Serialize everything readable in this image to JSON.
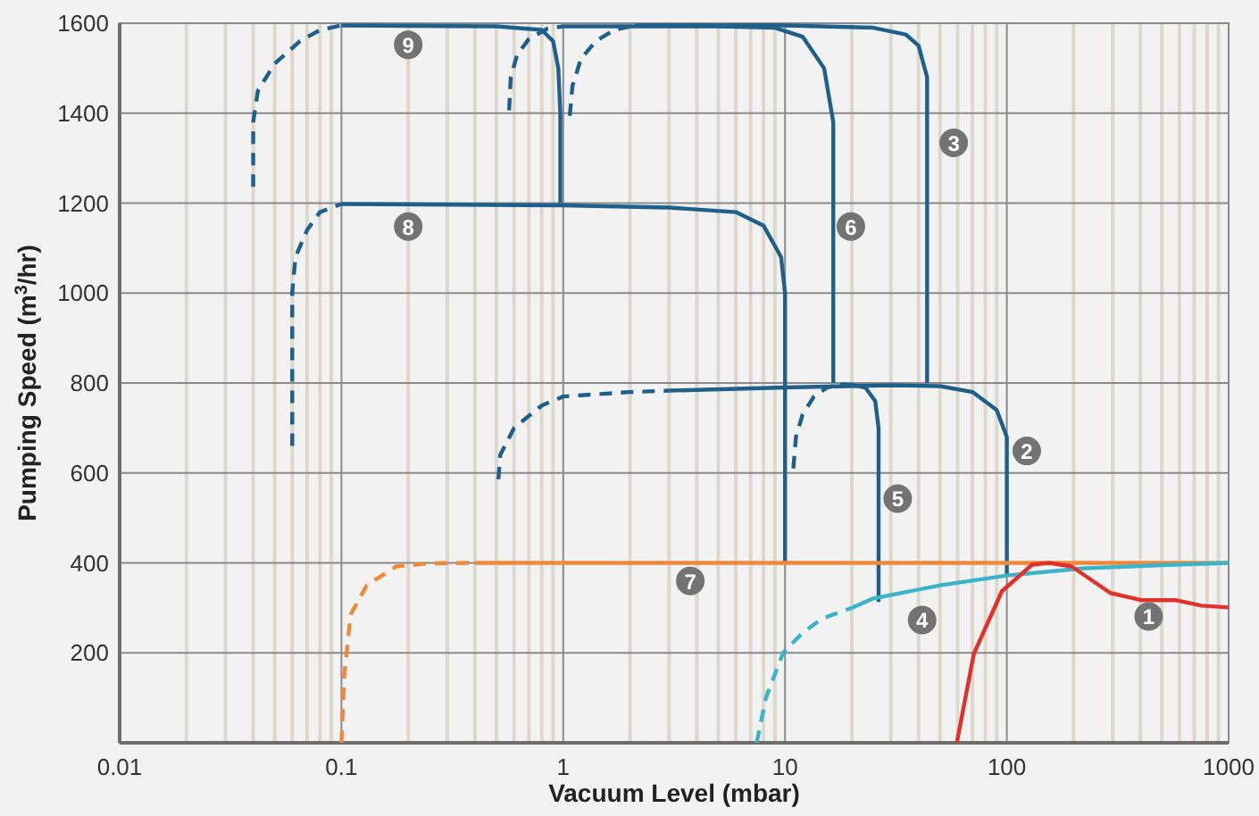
{
  "chart_data": {
    "type": "line",
    "xlabel": "Vacuum Level (mbar)",
    "ylabel": "Pumping Speed (m$^{3}$/hr)",
    "log": "x",
    "grid": true,
    "xlim": [
      0.01,
      1000
    ],
    "xticks": [
      0.01,
      0.1,
      1,
      10,
      100,
      1000
    ],
    "ylim": [
      0,
      1600
    ],
    "yticks": [
      200,
      400,
      600,
      800,
      1000,
      1200,
      1400,
      1600
    ],
    "series": [
      {
        "color": "#1f5f8b",
        "line_style": "dashed",
        "x": [
          0.04,
          0.04,
          0.042,
          0.05,
          0.065,
          0.08,
          0.1
        ],
        "values": [
          1236,
          1380,
          1450,
          1510,
          1560,
          1585,
          1595
        ]
      },
      {
        "color": "#1f5f8b",
        "line_style": "solid",
        "x": [
          0.1,
          0.5,
          0.8,
          0.9,
          0.95,
          0.97,
          0.97
        ],
        "values": [
          1595,
          1593,
          1585,
          1560,
          1500,
          1400,
          1200
        ]
      },
      {
        "color": "#1f5f8b",
        "line_style": "dashed",
        "x": [
          0.06,
          0.06,
          0.062,
          0.07,
          0.08,
          0.1
        ],
        "values": [
          660,
          1000,
          1080,
          1140,
          1180,
          1198
        ]
      },
      {
        "color": "#1f5f8b",
        "line_style": "solid",
        "x": [
          0.1,
          1,
          3,
          6,
          8,
          9.6,
          10,
          10
        ],
        "values": [
          1198,
          1195,
          1190,
          1180,
          1150,
          1080,
          1000,
          400
        ]
      },
      {
        "color": "#1f5f8b",
        "line_style": "dashed",
        "x": [
          0.57,
          0.58,
          0.62,
          0.7,
          0.85,
          1
        ],
        "values": [
          1406,
          1480,
          1530,
          1565,
          1588,
          1593
        ]
      },
      {
        "color": "#1f5f8b",
        "line_style": "solid",
        "x": [
          1,
          5,
          9,
          12,
          15,
          16.5,
          16.5
        ],
        "values": [
          1593,
          1593,
          1590,
          1570,
          1500,
          1380,
          800
        ]
      },
      {
        "color": "#1f5f8b",
        "line_style": "dashed",
        "x": [
          1.07,
          1.1,
          1.2,
          1.4,
          1.7,
          2.1
        ],
        "values": [
          1394,
          1460,
          1520,
          1560,
          1585,
          1595
        ]
      },
      {
        "color": "#1f5f8b",
        "line_style": "solid",
        "x": [
          2.1,
          10,
          25,
          35,
          40,
          43.7,
          43.7
        ],
        "values": [
          1595,
          1595,
          1590,
          1575,
          1550,
          1480,
          800
        ]
      },
      {
        "color": "#1f5f8b",
        "line_style": "dashed",
        "x": [
          0.51,
          0.52,
          0.6,
          0.8,
          1,
          2,
          3
        ],
        "values": [
          586,
          640,
          700,
          750,
          770,
          780,
          783
        ]
      },
      {
        "color": "#1f5f8b",
        "line_style": "solid",
        "x": [
          3,
          10,
          30,
          50,
          70,
          90,
          100,
          100
        ],
        "values": [
          783,
          790,
          795,
          793,
          780,
          740,
          680,
          370
        ]
      },
      {
        "color": "#1f5f8b",
        "line_style": "dashed",
        "x": [
          10.9,
          11.2,
          12,
          13.5,
          15.5,
          17.7
        ],
        "values": [
          610,
          680,
          730,
          770,
          790,
          797
        ]
      },
      {
        "color": "#1f5f8b",
        "line_style": "solid",
        "x": [
          17.7,
          20,
          23,
          25.5,
          26.4,
          26.4
        ],
        "values": [
          797,
          796,
          790,
          760,
          700,
          313
        ]
      },
      {
        "color": "#f0883a",
        "line_style": "dashed",
        "x": [
          0.1,
          0.103,
          0.11,
          0.13,
          0.176,
          0.25,
          0.4
        ],
        "values": [
          0,
          150,
          285,
          350,
          392,
          399,
          400
        ]
      },
      {
        "color": "#f0883a",
        "line_style": "solid",
        "x": [
          0.4,
          1000
        ],
        "values": [
          400,
          400
        ]
      },
      {
        "color": "#3bb3c9",
        "line_style": "dashed",
        "x": [
          7.45,
          8.2,
          9.8,
          12,
          14.8,
          20
        ],
        "values": [
          0,
          100,
          200,
          245,
          277,
          300
        ]
      },
      {
        "color": "#3bb3c9",
        "line_style": "solid",
        "x": [
          20,
          25,
          50,
          100,
          224,
          500,
          1000
        ],
        "values": [
          300,
          321,
          350,
          372,
          388,
          395,
          400
        ]
      },
      {
        "color": "#e0322a",
        "line_style": "solid",
        "x": [
          59.5,
          71,
          95,
          130,
          155,
          196,
          293,
          405,
          582,
          754,
          1000
        ],
        "values": [
          0,
          198,
          337,
          396,
          400,
          392,
          333,
          317,
          317,
          305,
          301
        ]
      }
    ],
    "annotations": [
      {
        "text": "9",
        "x": 0.2,
        "y": 1552
      },
      {
        "text": "8",
        "x": 0.2,
        "y": 1148
      },
      {
        "text": "3",
        "x": 57.6,
        "y": 1334
      },
      {
        "text": "6",
        "x": 19.8,
        "y": 1148
      },
      {
        "text": "2",
        "x": 123,
        "y": 649
      },
      {
        "text": "5",
        "x": 32.2,
        "y": 543
      },
      {
        "text": "7",
        "x": 3.74,
        "y": 360
      },
      {
        "text": "4",
        "x": 41.5,
        "y": 273
      },
      {
        "text": "1",
        "x": 436,
        "y": 281
      }
    ]
  }
}
